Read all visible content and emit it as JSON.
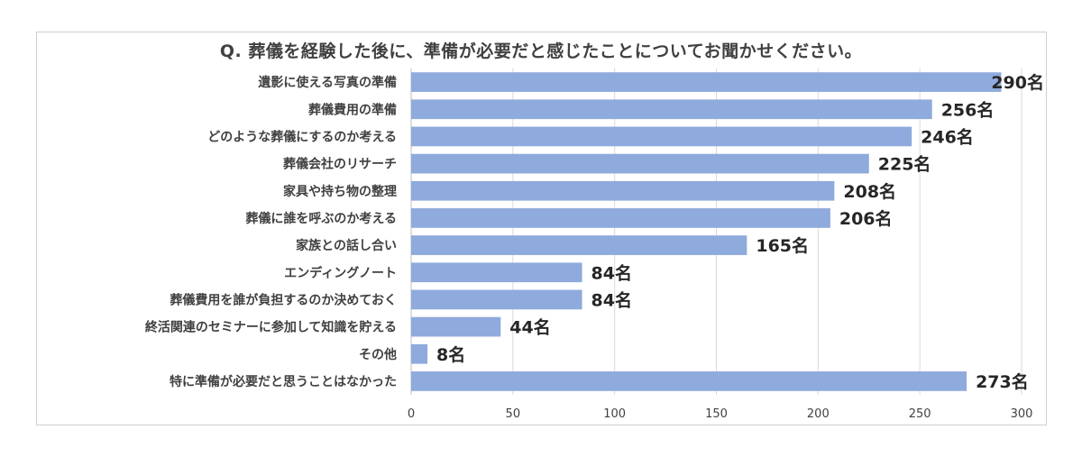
{
  "chart_data": {
    "type": "bar",
    "orientation": "horizontal",
    "title": "Q. 葬儀を経験した後に、準備が必要だと感じたことについてお聞かせください。",
    "categories": [
      "遺影に使える写真の準備",
      "葬儀費用の準備",
      "どのような葬儀にするのか考える",
      "葬儀会社のリサーチ",
      "家具や持ち物の整理",
      "葬儀に誰を呼ぶのか考える",
      "家族との話し合い",
      "エンディングノート",
      "葬儀費用を誰が負担するのか決めておく",
      "終活関連のセミナーに参加して知識を貯える",
      "その他",
      "特に準備が必要だと思うことはなかった"
    ],
    "values": [
      290,
      256,
      246,
      225,
      208,
      206,
      165,
      84,
      84,
      44,
      8,
      273
    ],
    "value_labels": [
      "290名",
      "256名",
      "246名",
      "225名",
      "208名",
      "206名",
      "165名",
      "84名",
      "84名",
      "44名",
      "8名",
      "273名"
    ],
    "xlim": [
      0,
      300
    ],
    "xticks": [
      0,
      50,
      100,
      150,
      200,
      250,
      300
    ],
    "grid": true,
    "bar_color": "#8faadc"
  }
}
